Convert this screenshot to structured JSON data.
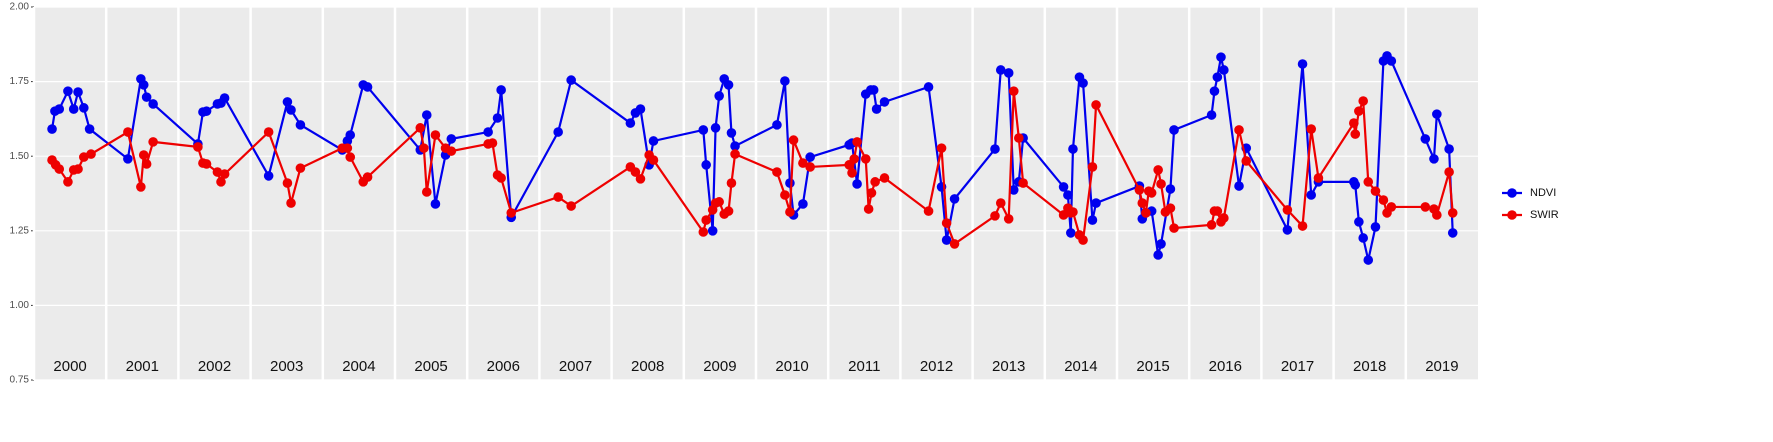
{
  "chart_data": {
    "type": "line",
    "xlim": [
      2000,
      2020
    ],
    "xticks": [
      {
        "value": 2000,
        "label": "2000"
      },
      {
        "value": 2001,
        "label": "2001"
      },
      {
        "value": 2002,
        "label": "2002"
      },
      {
        "value": 2003,
        "label": "2003"
      },
      {
        "value": 2004,
        "label": "2004"
      },
      {
        "value": 2005,
        "label": "2005"
      },
      {
        "value": 2006,
        "label": "2006"
      },
      {
        "value": 2007,
        "label": "2007"
      },
      {
        "value": 2008,
        "label": "2008"
      },
      {
        "value": 2009,
        "label": "2009"
      },
      {
        "value": 2010,
        "label": "2010"
      },
      {
        "value": 2011,
        "label": "2011"
      },
      {
        "value": 2012,
        "label": "2012"
      },
      {
        "value": 2013,
        "label": "2013"
      },
      {
        "value": 2014,
        "label": "2014"
      },
      {
        "value": 2015,
        "label": "2015"
      },
      {
        "value": 2016,
        "label": "2016"
      },
      {
        "value": 2017,
        "label": "2017"
      },
      {
        "value": 2018,
        "label": "2018"
      },
      {
        "value": 2019,
        "label": "2019"
      }
    ],
    "ylim": [
      0.75,
      2.0
    ],
    "yticks": [
      {
        "value": 0.75,
        "label": "0.75"
      },
      {
        "value": 1.0,
        "label": "1.00"
      },
      {
        "value": 1.25,
        "label": "1.25"
      },
      {
        "value": 1.5,
        "label": "1.50"
      },
      {
        "value": 1.75,
        "label": "1.75"
      },
      {
        "value": 2.0,
        "label": "2.00"
      }
    ],
    "grid": true,
    "legend": "right",
    "series": [
      {
        "name": "NDVI",
        "color": "#0000ee",
        "x": [
          2000.25,
          2000.29,
          2000.35,
          2000.47,
          2000.55,
          2000.61,
          2000.69,
          2000.77,
          2001.3,
          2001.48,
          2001.52,
          2001.56,
          2001.65,
          2002.27,
          2002.34,
          2002.39,
          2002.54,
          2002.59,
          2002.64,
          2003.25,
          2003.51,
          2003.56,
          2003.69,
          2004.27,
          2004.34,
          2004.38,
          2004.56,
          2004.62,
          2005.35,
          2005.44,
          2005.56,
          2005.7,
          2005.78,
          2006.29,
          2006.42,
          2006.47,
          2006.61,
          2007.26,
          2007.44,
          2008.26,
          2008.33,
          2008.4,
          2008.52,
          2008.58,
          2009.27,
          2009.31,
          2009.4,
          2009.44,
          2009.49,
          2009.56,
          2009.62,
          2009.66,
          2009.71,
          2010.29,
          2010.4,
          2010.47,
          2010.52,
          2010.65,
          2010.75,
          2011.29,
          2011.33,
          2011.4,
          2011.52,
          2011.59,
          2011.63,
          2011.67,
          2011.78,
          2012.39,
          2012.57,
          2012.64,
          2012.75,
          2013.31,
          2013.39,
          2013.5,
          2013.57,
          2013.64,
          2013.7,
          2014.26,
          2014.32,
          2014.36,
          2014.39,
          2014.48,
          2014.53,
          2014.66,
          2014.71,
          2015.31,
          2015.35,
          2015.4,
          2015.48,
          2015.57,
          2015.61,
          2015.74,
          2015.79,
          2016.31,
          2016.35,
          2016.39,
          2016.44,
          2016.48,
          2016.69,
          2016.79,
          2017.36,
          2017.57,
          2017.69,
          2017.79,
          2018.28,
          2018.3,
          2018.35,
          2018.41,
          2018.48,
          2018.58,
          2018.69,
          2018.74,
          2018.8,
          2019.27,
          2019.39,
          2019.43,
          2019.6,
          2019.65
        ],
        "values": [
          1.591,
          1.651,
          1.658,
          1.718,
          1.658,
          1.715,
          1.662,
          1.591,
          1.491,
          1.759,
          1.739,
          1.698,
          1.675,
          1.541,
          1.648,
          1.651,
          1.675,
          1.678,
          1.695,
          1.434,
          1.682,
          1.655,
          1.605,
          1.521,
          1.551,
          1.571,
          1.739,
          1.732,
          1.521,
          1.638,
          1.34,
          1.504,
          1.558,
          1.581,
          1.628,
          1.722,
          1.295,
          1.581,
          1.755,
          1.611,
          1.645,
          1.658,
          1.471,
          1.551,
          1.588,
          1.471,
          1.25,
          1.595,
          1.702,
          1.759,
          1.739,
          1.578,
          1.534,
          1.605,
          1.752,
          1.41,
          1.303,
          1.34,
          1.497,
          1.538,
          1.544,
          1.407,
          1.708,
          1.722,
          1.722,
          1.658,
          1.682,
          1.732,
          1.397,
          1.219,
          1.357,
          1.524,
          1.789,
          1.779,
          1.387,
          1.414,
          1.561,
          1.397,
          1.37,
          1.243,
          1.524,
          1.765,
          1.745,
          1.286,
          1.343,
          1.4,
          1.29,
          1.31,
          1.316,
          1.169,
          1.206,
          1.39,
          1.588,
          1.638,
          1.718,
          1.765,
          1.832,
          1.789,
          1.4,
          1.527,
          1.253,
          1.809,
          1.37,
          1.414,
          1.414,
          1.404,
          1.28,
          1.226,
          1.152,
          1.263,
          1.819,
          1.836,
          1.819,
          1.558,
          1.491,
          1.641,
          1.524,
          1.243
        ]
      },
      {
        "name": "SWIR",
        "color": "#ee0000",
        "x": [
          2000.25,
          2000.3,
          2000.35,
          2000.47,
          2000.55,
          2000.61,
          2000.69,
          2000.79,
          2001.3,
          2001.48,
          2001.52,
          2001.56,
          2001.65,
          2002.27,
          2002.34,
          2002.39,
          2002.54,
          2002.59,
          2002.64,
          2003.25,
          2003.51,
          2003.56,
          2003.69,
          2004.27,
          2004.34,
          2004.38,
          2004.56,
          2004.62,
          2005.35,
          2005.4,
          2005.44,
          2005.56,
          2005.7,
          2005.78,
          2006.29,
          2006.35,
          2006.42,
          2006.47,
          2006.61,
          2007.26,
          2007.44,
          2008.26,
          2008.33,
          2008.4,
          2008.52,
          2008.58,
          2009.27,
          2009.31,
          2009.4,
          2009.44,
          2009.49,
          2009.56,
          2009.62,
          2009.66,
          2009.71,
          2010.29,
          2010.4,
          2010.47,
          2010.52,
          2010.65,
          2010.75,
          2011.29,
          2011.33,
          2011.36,
          2011.4,
          2011.52,
          2011.56,
          2011.6,
          2011.65,
          2011.78,
          2012.39,
          2012.57,
          2012.64,
          2012.75,
          2013.31,
          2013.39,
          2013.5,
          2013.57,
          2013.64,
          2013.7,
          2014.26,
          2014.32,
          2014.36,
          2014.39,
          2014.48,
          2014.53,
          2014.66,
          2014.71,
          2015.31,
          2015.35,
          2015.4,
          2015.44,
          2015.48,
          2015.57,
          2015.61,
          2015.67,
          2015.74,
          2015.79,
          2016.31,
          2016.35,
          2016.39,
          2016.44,
          2016.48,
          2016.69,
          2016.79,
          2017.36,
          2017.57,
          2017.69,
          2017.79,
          2018.28,
          2018.3,
          2018.35,
          2018.41,
          2018.48,
          2018.58,
          2018.69,
          2018.74,
          2018.8,
          2019.27,
          2019.39,
          2019.43,
          2019.6,
          2019.65
        ],
        "values": [
          1.487,
          1.471,
          1.457,
          1.414,
          1.454,
          1.457,
          1.497,
          1.507,
          1.581,
          1.397,
          1.504,
          1.474,
          1.548,
          1.531,
          1.477,
          1.474,
          1.447,
          1.414,
          1.44,
          1.581,
          1.41,
          1.343,
          1.46,
          1.527,
          1.527,
          1.497,
          1.414,
          1.43,
          1.595,
          1.527,
          1.38,
          1.571,
          1.527,
          1.517,
          1.541,
          1.544,
          1.437,
          1.427,
          1.31,
          1.363,
          1.333,
          1.464,
          1.447,
          1.424,
          1.504,
          1.487,
          1.246,
          1.286,
          1.32,
          1.343,
          1.347,
          1.306,
          1.316,
          1.41,
          1.507,
          1.447,
          1.37,
          1.313,
          1.554,
          1.477,
          1.464,
          1.471,
          1.444,
          1.491,
          1.548,
          1.491,
          1.323,
          1.377,
          1.414,
          1.427,
          1.316,
          1.527,
          1.276,
          1.206,
          1.3,
          1.343,
          1.29,
          1.718,
          1.561,
          1.41,
          1.303,
          1.326,
          1.31,
          1.313,
          1.236,
          1.219,
          1.464,
          1.672,
          1.387,
          1.343,
          1.31,
          1.383,
          1.377,
          1.454,
          1.407,
          1.313,
          1.326,
          1.259,
          1.27,
          1.316,
          1.316,
          1.28,
          1.293,
          1.588,
          1.484,
          1.32,
          1.266,
          1.591,
          1.427,
          1.611,
          1.574,
          1.651,
          1.685,
          1.414,
          1.383,
          1.353,
          1.31,
          1.33,
          1.33,
          1.323,
          1.303,
          1.447,
          1.31
        ]
      }
    ]
  }
}
